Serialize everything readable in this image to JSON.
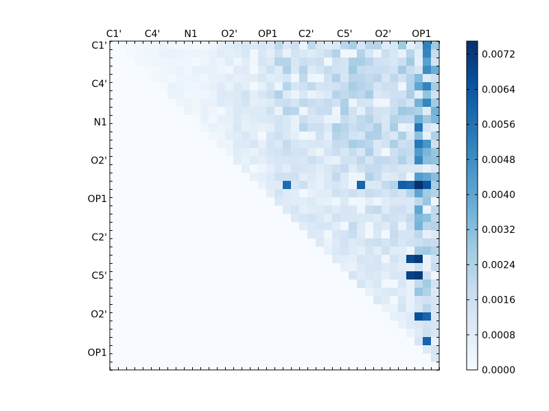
{
  "chart_data": {
    "type": "heatmap",
    "title": "",
    "xlabel": "",
    "ylabel": "",
    "n": 40,
    "colormap": "Blues",
    "x_tick_labels": [
      "C1'",
      "C4'",
      "N1",
      "O2'",
      "OP1",
      "C2'",
      "C5'",
      "O2'",
      "OP1"
    ],
    "y_tick_labels": [
      "C1'",
      "C4'",
      "N1",
      "O2'",
      "OP1",
      "C2'",
      "C5'",
      "O2'",
      "OP1"
    ],
    "tick_label_every": 4.67,
    "upper_triangle_only": true,
    "colorbar": {
      "min": 0.0,
      "max": 0.0075,
      "tick_labels": [
        "0.0000",
        "0.0008",
        "0.0016",
        "0.0024",
        "0.0032",
        "0.0040",
        "0.0048",
        "0.0056",
        "0.0064",
        "0.0072"
      ]
    },
    "row_band_intensity": [
      0.05,
      0.1,
      0.08,
      0.12,
      0.1,
      0.12,
      0.18,
      0.22,
      0.2,
      0.25,
      0.22,
      0.18,
      0.2,
      0.22,
      0.2,
      0.15,
      0.22,
      0.25,
      0.2,
      0.18,
      0.28,
      0.3,
      0.28,
      0.2,
      0.2,
      0.25,
      0.18,
      0.15,
      0.15,
      0.18,
      0.15,
      0.18,
      0.2,
      0.15,
      0.18,
      0.12,
      0.15,
      0.15,
      0.12,
      0.1
    ],
    "column_band_intensity": [
      0.0,
      0.02,
      0.03,
      0.05,
      0.08,
      0.1,
      0.12,
      0.12,
      0.1,
      0.1,
      0.1,
      0.1,
      0.15,
      0.2,
      0.2,
      0.25,
      0.3,
      0.28,
      0.25,
      0.3,
      0.45,
      0.45,
      0.4,
      0.4,
      0.35,
      0.3,
      0.3,
      0.4,
      0.42,
      0.45,
      0.45,
      0.4,
      0.35,
      0.3,
      0.35,
      0.4,
      0.35,
      0.85,
      0.7,
      0.45
    ],
    "hotspot_cells": [
      {
        "row": 17,
        "col": 37,
        "value": 0.0075
      },
      {
        "row": 17,
        "col": 36,
        "value": 0.006
      },
      {
        "row": 17,
        "col": 38,
        "value": 0.0065
      },
      {
        "row": 26,
        "col": 37,
        "value": 0.0072
      },
      {
        "row": 26,
        "col": 36,
        "value": 0.0068
      },
      {
        "row": 28,
        "col": 37,
        "value": 0.0072
      },
      {
        "row": 28,
        "col": 36,
        "value": 0.007
      },
      {
        "row": 33,
        "col": 37,
        "value": 0.0066
      },
      {
        "row": 33,
        "col": 38,
        "value": 0.006
      },
      {
        "row": 36,
        "col": 38,
        "value": 0.006
      },
      {
        "row": 17,
        "col": 21,
        "value": 0.0058
      },
      {
        "row": 17,
        "col": 30,
        "value": 0.006
      },
      {
        "row": 17,
        "col": 35,
        "value": 0.0062
      }
    ],
    "palette": {
      "zero": "#f7fbff",
      "low": "#deebf7",
      "mid": "#6baed6",
      "high": "#08306b"
    }
  }
}
